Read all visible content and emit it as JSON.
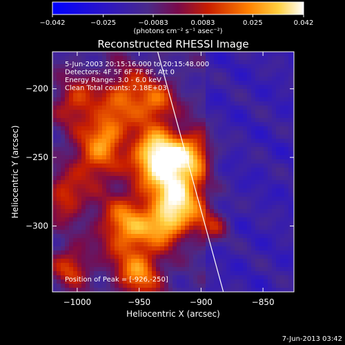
{
  "colorbar": {
    "ticks": [
      "-0.042",
      "-0.025",
      "-0.0083",
      "0.0083",
      "0.025",
      "0.042"
    ],
    "range": [
      -0.042,
      0.042
    ],
    "units_label": "(photons cm⁻² s⁻¹ asec⁻²)"
  },
  "chart_data": {
    "type": "heatmap",
    "title": "Reconstructed RHESSI Image",
    "xlabel": "Heliocentric X (arcsec)",
    "ylabel": "Heliocentric Y (arcsec)",
    "xlim": [
      -1020,
      -825
    ],
    "ylim": [
      -348,
      -173
    ],
    "x_ticks": [
      -1000,
      -950,
      -900,
      -850
    ],
    "y_ticks": [
      -200,
      -250,
      -300
    ],
    "x_tick_labels": [
      "−1000",
      "−950",
      "−900",
      "−850"
    ],
    "y_tick_labels": [
      "−200",
      "−250",
      "−300"
    ],
    "info_lines": [
      "5-Jun-2003 20:15:16.000 to 20:15:48.000",
      "Detectors: 4F 5F 6F 7F 8F, Att 0",
      "Energy Range: 3.0 - 6.0 keV",
      "Clean     Total counts: 2.18E+03"
    ],
    "peak_label": "Position of Peak = [-926,-250]",
    "peak": [
      -926,
      -250
    ],
    "limb_line": [
      [
        -935,
        -173
      ],
      [
        -882,
        -348
      ]
    ]
  },
  "footer": {
    "date": "7-Jun-2013 03:42"
  }
}
